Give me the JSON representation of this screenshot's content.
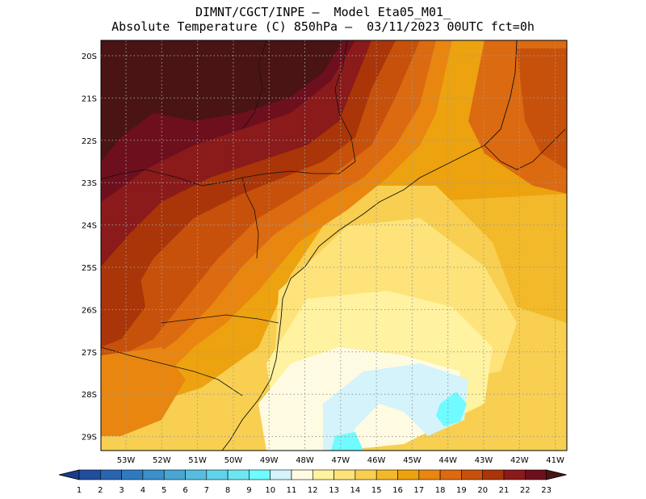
{
  "title_line1": "DIMNT/CGCT/INPE –  Model Eta05_M01_",
  "title_line2": "Absolute Temperature (C) 850hPa –  03/11/2023 00UTC fct=0h",
  "map": {
    "lat_labels": [
      "20S",
      "21S",
      "22S",
      "23S",
      "24S",
      "25S",
      "26S",
      "27S",
      "28S",
      "29S"
    ],
    "lon_labels": [
      "53W",
      "52W",
      "51W",
      "50W",
      "49W",
      "48W",
      "47W",
      "46W",
      "45W",
      "44W",
      "43W",
      "42W",
      "41W"
    ]
  },
  "colorbar": {
    "labels": [
      "1",
      "2",
      "3",
      "4",
      "5",
      "6",
      "7",
      "8",
      "9",
      "10",
      "11",
      "12",
      "13",
      "14",
      "15",
      "16",
      "17",
      "18",
      "19",
      "20",
      "21",
      "22",
      "23"
    ],
    "colors": [
      "#1a3c8f",
      "#204d9e",
      "#2a63b0",
      "#2f7abf",
      "#3b90c9",
      "#49a6d3",
      "#57bde0",
      "#62d2eb",
      "#6ee6f2",
      "#6ffbff",
      "#d4f3fb",
      "#fffbe3",
      "#fff2a0",
      "#fde37a",
      "#f8cf50",
      "#f2b92a",
      "#eda20f",
      "#e88610",
      "#dc6a10",
      "#c7510b",
      "#a93508",
      "#8b1a1a",
      "#6e0f1e",
      "#4a1414"
    ],
    "left_cap": "#1a3c8f",
    "right_cap": "#4a1414"
  },
  "legend_colors": {
    "t23": "#4a1414",
    "t22": "#6e0f1e",
    "t21": "#8b1a1a",
    "t20": "#a93508",
    "t19": "#c7510b",
    "t18": "#dc6a10",
    "t17": "#e88610",
    "t16": "#eda20f",
    "t15": "#f2b92a",
    "t14": "#f8cf50",
    "t13": "#fde37a",
    "t12": "#fff2a0",
    "t11": "#fffbe3",
    "t10": "#d4f3fb",
    "t9": "#6ffbff",
    "t8": "#62d2eb"
  }
}
